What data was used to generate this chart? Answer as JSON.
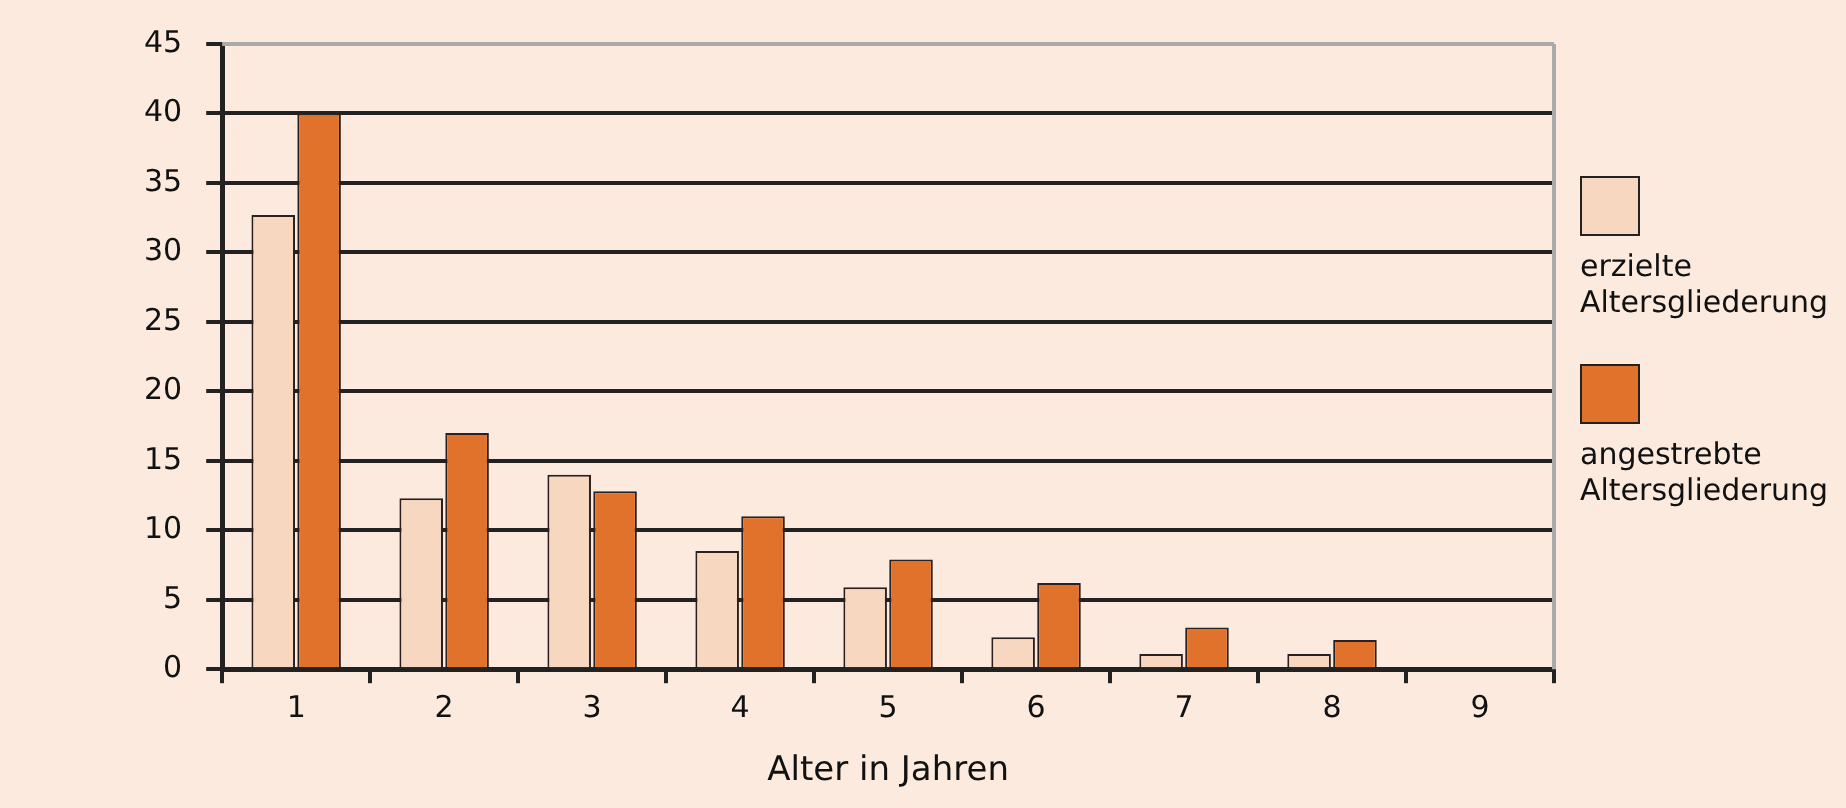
{
  "chart_data": {
    "type": "bar",
    "xlabel": "Alter in Jahren",
    "categories": [
      "1",
      "2",
      "3",
      "4",
      "5",
      "6",
      "7",
      "8",
      "9"
    ],
    "series": [
      {
        "name": "erzielte Altersgliederung",
        "color": "#f7d7bf",
        "values": [
          32.7,
          12.3,
          14.0,
          8.5,
          5.9,
          2.3,
          1.1,
          1.1,
          0
        ]
      },
      {
        "name": "angestrebte Altersgliederung",
        "color": "#e0722b",
        "values": [
          40,
          17.0,
          12.8,
          11,
          7.9,
          6.2,
          3.0,
          2.1,
          0
        ]
      }
    ],
    "ylim": [
      0,
      45
    ],
    "yticks": [
      0,
      5,
      10,
      15,
      20,
      25,
      30,
      35,
      40,
      45
    ],
    "grid": "y",
    "legend": "right"
  }
}
